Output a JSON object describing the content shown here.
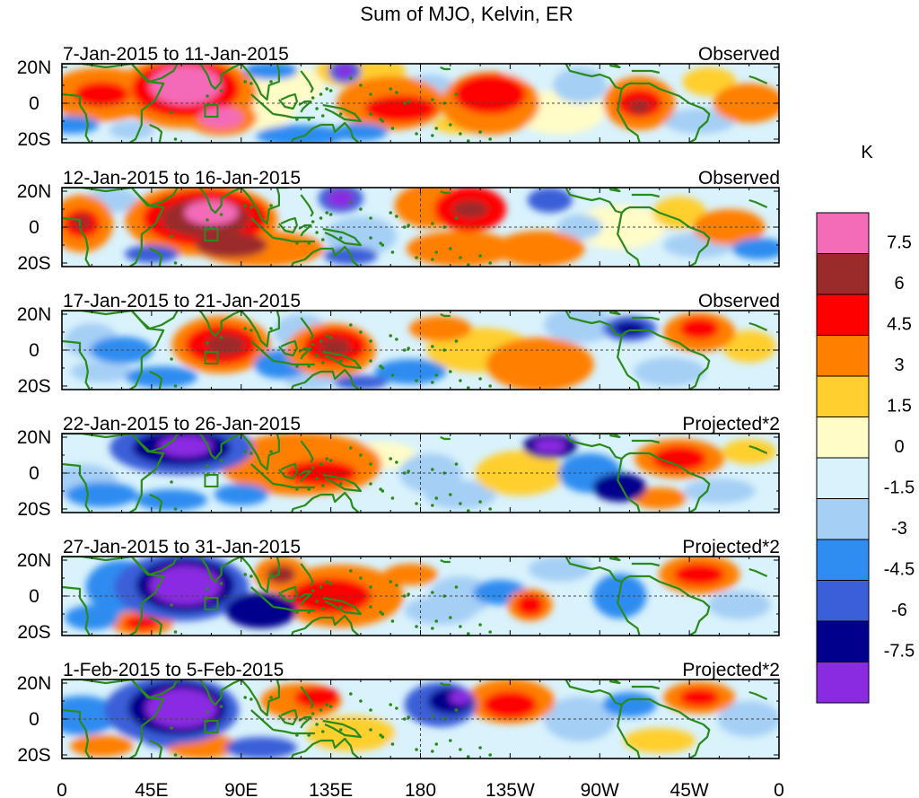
{
  "title": "Sum of MJO, Kelvin, ER",
  "panels": [
    {
      "dates": "7-Jan-2015 to 11-Jan-2015",
      "kind": "Observed"
    },
    {
      "dates": "12-Jan-2015 to 16-Jan-2015",
      "kind": "Observed"
    },
    {
      "dates": "17-Jan-2015 to 21-Jan-2015",
      "kind": "Observed"
    },
    {
      "dates": "22-Jan-2015 to 26-Jan-2015",
      "kind": "Projected*2"
    },
    {
      "dates": "27-Jan-2015 to 31-Jan-2015",
      "kind": "Projected*2"
    },
    {
      "dates": "1-Feb-2015 to 5-Feb-2015",
      "kind": "Projected*2"
    }
  ],
  "lat_ticks": [
    "20N",
    "0",
    "20S"
  ],
  "lon_ticks": [
    "0",
    "45E",
    "90E",
    "135E",
    "180",
    "135W",
    "90W",
    "45W",
    "0"
  ],
  "colorbar": {
    "unit": "K",
    "labels": [
      "7.5",
      "6",
      "4.5",
      "3",
      "1.5",
      "0",
      "-1.5",
      "-3",
      "-4.5",
      "-6",
      "-7.5"
    ],
    "colors": [
      "#f46bb8",
      "#9b2a2a",
      "#ff0000",
      "#ff7f00",
      "#ffcf2f",
      "#fffcc8",
      "#d9f2fc",
      "#a5cff5",
      "#2f8cf0",
      "#3a5fd8",
      "#00008c",
      "#8a2be2"
    ]
  },
  "colors": {
    "coast": "#2a8a1c",
    "grid": "#444444"
  }
}
